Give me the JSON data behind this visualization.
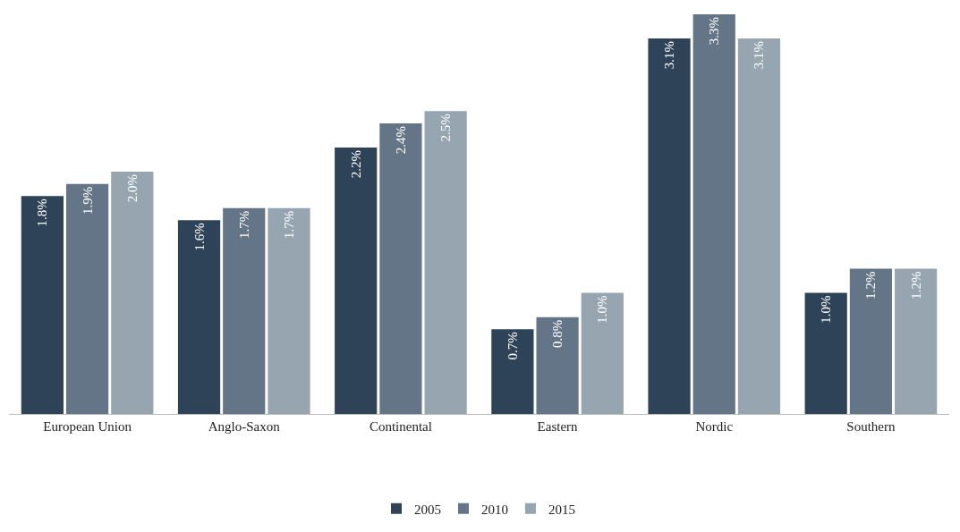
{
  "chart_data": {
    "type": "bar",
    "categories": [
      "European Union",
      "Anglo-Saxon",
      "Continental",
      "Eastern",
      "Nordic",
      "Southern"
    ],
    "series": [
      {
        "name": "2005",
        "color": "#2e4358",
        "values": [
          1.8,
          1.6,
          2.2,
          0.7,
          3.1,
          1.0
        ],
        "value_labels": [
          "1.8%",
          "1.6%",
          "2.2%",
          "0.7%",
          "3.1%",
          "1.0%"
        ]
      },
      {
        "name": "2010",
        "color": "#637587",
        "values": [
          1.9,
          1.7,
          2.4,
          0.8,
          3.3,
          1.2
        ],
        "value_labels": [
          "1.9%",
          "1.7%",
          "2.4%",
          "0.8%",
          "3.3%",
          "1.2%"
        ]
      },
      {
        "name": "2015",
        "color": "#97a5b0",
        "values": [
          2.0,
          1.7,
          2.5,
          1.0,
          3.1,
          1.2
        ],
        "value_labels": [
          "2.0%",
          "1.7%",
          "2.5%",
          "1.0%",
          "3.1%",
          "1.2%"
        ]
      }
    ],
    "legend": "bottom"
  }
}
